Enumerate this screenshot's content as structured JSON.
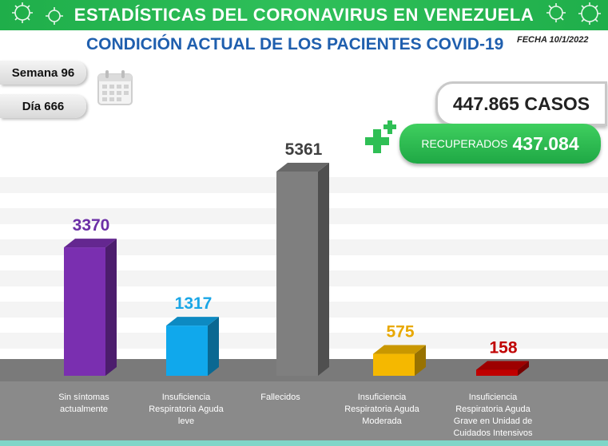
{
  "header": {
    "title": "ESTADÍSTICAS DEL CORONAVIRUS EN VENEZUELA",
    "subtitle": "CONDICIÓN ACTUAL DE LOS PACIENTES COVID-19",
    "fecha": "FECHA 10/1/2022"
  },
  "info": {
    "semana": "Semana 96",
    "dia": "Día 666"
  },
  "totals": {
    "casos": "447.865 CASOS",
    "recuperados_label": "RECUPERADOS",
    "recuperados_value": "437.084"
  },
  "colors": {
    "banner": "#2fc05a",
    "subtitle": "#1f5fae",
    "floor": "#7a7a7a"
  },
  "chart_data": {
    "type": "bar",
    "title": "CONDICIÓN ACTUAL DE LOS PACIENTES COVID-19",
    "categories": [
      [
        "Sin síntomas",
        "actualmente"
      ],
      [
        "Insuficiencia",
        "Respiratoria Aguda",
        "leve"
      ],
      [
        "Fallecidos"
      ],
      [
        "Insuficiencia",
        "Respiratoria Aguda",
        "Moderada"
      ],
      [
        "Insuficiencia",
        "Respiratoria Aguda",
        "Grave en Unidad de",
        "Cuidados Intensivos"
      ]
    ],
    "values": [
      3370,
      1317,
      5361,
      575,
      158
    ],
    "value_labels": [
      "3370",
      "1317",
      "5361",
      "575",
      "158"
    ],
    "bar_colors": [
      "#7a2fb0",
      "#10a8ec",
      "#7f7f7f",
      "#f5b800",
      "#c00000"
    ],
    "label_colors": [
      "#6b2fa6",
      "#1aa6e6",
      "#404040",
      "#e8a800",
      "#c00000"
    ]
  }
}
